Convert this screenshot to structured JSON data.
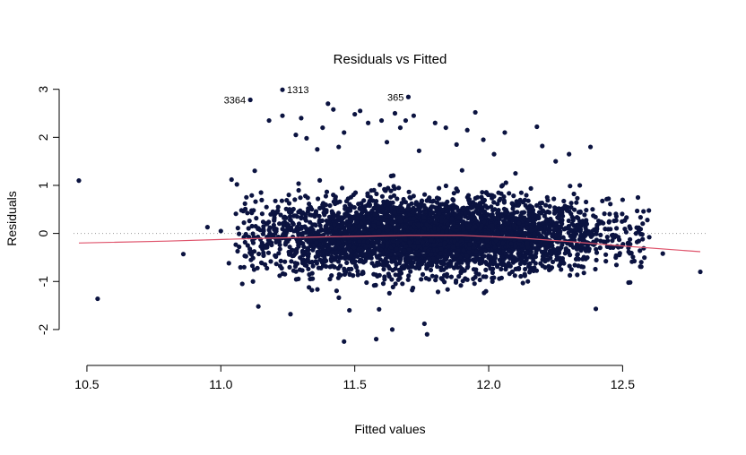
{
  "chart_data": {
    "type": "scatter",
    "title": "Residuals vs Fitted",
    "xlabel": "Fitted values",
    "ylabel": "Residuals",
    "xlim": [
      10.45,
      12.82
    ],
    "ylim": [
      -2.3,
      3.05
    ],
    "x_ticks": [
      {
        "value": 10.5,
        "label": "10.5"
      },
      {
        "value": 11.0,
        "label": "11.0"
      },
      {
        "value": 11.5,
        "label": "11.5"
      },
      {
        "value": 12.0,
        "label": "12.0"
      },
      {
        "value": 12.5,
        "label": "12.5"
      }
    ],
    "y_ticks": [
      {
        "value": -2,
        "label": "-2"
      },
      {
        "value": -1,
        "label": "-1"
      },
      {
        "value": 0,
        "label": "0"
      },
      {
        "value": 1,
        "label": "1"
      },
      {
        "value": 2,
        "label": "2"
      },
      {
        "value": 3,
        "label": "3"
      }
    ],
    "point_color": "#0b1340",
    "smooth_color": "#df536b",
    "reference_line": {
      "y": 0,
      "style": "dotted",
      "color": "#9a9a9a"
    },
    "dense_cloud": {
      "x_center": 11.78,
      "x_spread": 0.33,
      "y_center": -0.05,
      "y_spread": 0.38,
      "count": 4200
    },
    "points": [
      {
        "x": 10.47,
        "y": 1.1
      },
      {
        "x": 10.54,
        "y": -1.36
      },
      {
        "x": 10.86,
        "y": -0.43
      },
      {
        "x": 10.95,
        "y": 0.13
      },
      {
        "x": 11.0,
        "y": 0.05
      },
      {
        "x": 11.03,
        "y": -0.62
      },
      {
        "x": 11.04,
        "y": 1.12
      },
      {
        "x": 11.06,
        "y": 1.02
      },
      {
        "x": 11.08,
        "y": -1.05
      },
      {
        "x": 11.09,
        "y": 0.62
      },
      {
        "x": 11.11,
        "y": 2.78,
        "label": "3364"
      },
      {
        "x": 11.12,
        "y": -1.0
      },
      {
        "x": 11.14,
        "y": -1.52
      },
      {
        "x": 11.15,
        "y": 0.85
      },
      {
        "x": 11.18,
        "y": 2.35
      },
      {
        "x": 11.23,
        "y": 2.99,
        "label": "1313"
      },
      {
        "x": 11.23,
        "y": 2.45
      },
      {
        "x": 11.26,
        "y": -1.68
      },
      {
        "x": 11.28,
        "y": 2.05
      },
      {
        "x": 11.3,
        "y": 2.4
      },
      {
        "x": 11.32,
        "y": 1.98
      },
      {
        "x": 11.34,
        "y": -1.18
      },
      {
        "x": 11.36,
        "y": 1.75
      },
      {
        "x": 11.38,
        "y": 2.2
      },
      {
        "x": 11.4,
        "y": 2.7
      },
      {
        "x": 11.42,
        "y": 2.58
      },
      {
        "x": 11.44,
        "y": 1.8
      },
      {
        "x": 11.46,
        "y": -2.25
      },
      {
        "x": 11.46,
        "y": 2.1
      },
      {
        "x": 11.48,
        "y": -1.6
      },
      {
        "x": 11.5,
        "y": 2.48
      },
      {
        "x": 11.52,
        "y": 2.55
      },
      {
        "x": 11.55,
        "y": 2.3
      },
      {
        "x": 11.58,
        "y": -2.2
      },
      {
        "x": 11.6,
        "y": 2.35
      },
      {
        "x": 11.62,
        "y": 1.9
      },
      {
        "x": 11.64,
        "y": -2.0
      },
      {
        "x": 11.65,
        "y": 2.5
      },
      {
        "x": 11.67,
        "y": 2.2
      },
      {
        "x": 11.69,
        "y": 2.35
      },
      {
        "x": 11.7,
        "y": 2.84,
        "label": "365"
      },
      {
        "x": 11.72,
        "y": 2.45
      },
      {
        "x": 11.74,
        "y": 1.72
      },
      {
        "x": 11.76,
        "y": -1.88
      },
      {
        "x": 11.77,
        "y": -2.1
      },
      {
        "x": 11.8,
        "y": 2.3
      },
      {
        "x": 11.84,
        "y": 2.2
      },
      {
        "x": 11.88,
        "y": 1.85
      },
      {
        "x": 11.92,
        "y": 2.15
      },
      {
        "x": 11.95,
        "y": 2.52
      },
      {
        "x": 11.98,
        "y": 1.95
      },
      {
        "x": 12.02,
        "y": 1.65
      },
      {
        "x": 12.06,
        "y": 2.1
      },
      {
        "x": 12.1,
        "y": 1.25
      },
      {
        "x": 12.18,
        "y": 2.22
      },
      {
        "x": 12.2,
        "y": 1.82
      },
      {
        "x": 12.25,
        "y": 1.5
      },
      {
        "x": 12.3,
        "y": 1.65
      },
      {
        "x": 12.34,
        "y": 1.0
      },
      {
        "x": 12.38,
        "y": 1.8
      },
      {
        "x": 12.4,
        "y": -1.57
      },
      {
        "x": 12.45,
        "y": 0.25
      },
      {
        "x": 12.5,
        "y": 0.7
      },
      {
        "x": 12.52,
        "y": -0.2
      },
      {
        "x": 12.55,
        "y": 0.0
      },
      {
        "x": 12.56,
        "y": 0.12
      },
      {
        "x": 12.65,
        "y": -0.42
      },
      {
        "x": 12.79,
        "y": -0.8
      }
    ],
    "smooth": [
      {
        "x": 10.47,
        "y": -0.2
      },
      {
        "x": 10.8,
        "y": -0.16
      },
      {
        "x": 11.1,
        "y": -0.11
      },
      {
        "x": 11.4,
        "y": -0.07
      },
      {
        "x": 11.7,
        "y": -0.04
      },
      {
        "x": 11.9,
        "y": -0.04
      },
      {
        "x": 12.1,
        "y": -0.09
      },
      {
        "x": 12.3,
        "y": -0.17
      },
      {
        "x": 12.5,
        "y": -0.26
      },
      {
        "x": 12.79,
        "y": -0.38
      }
    ]
  }
}
